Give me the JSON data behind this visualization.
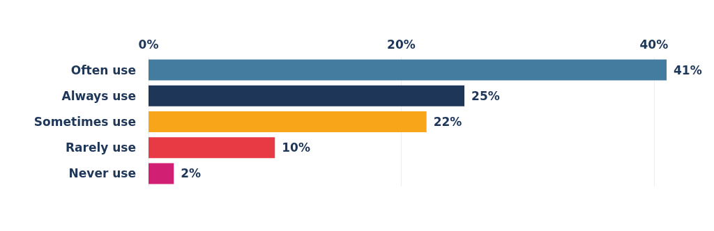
{
  "chart_data": {
    "type": "bar",
    "orientation": "horizontal",
    "categories": [
      "Often use",
      "Always use",
      "Sometimes use",
      "Rarely use",
      "Never use"
    ],
    "values": [
      41,
      25,
      22,
      10,
      2
    ],
    "colors": [
      "#437c9f",
      "#1e3658",
      "#f9a51a",
      "#e83a45",
      "#d11f74"
    ],
    "value_labels": [
      "41%",
      "25%",
      "22%",
      "10%",
      "2%"
    ],
    "xlim": [
      0,
      41
    ],
    "xticks": [
      {
        "value": 0,
        "label": "0%"
      },
      {
        "value": 20,
        "label": "20%"
      },
      {
        "value": 40,
        "label": "40%"
      }
    ],
    "grid": "x"
  }
}
